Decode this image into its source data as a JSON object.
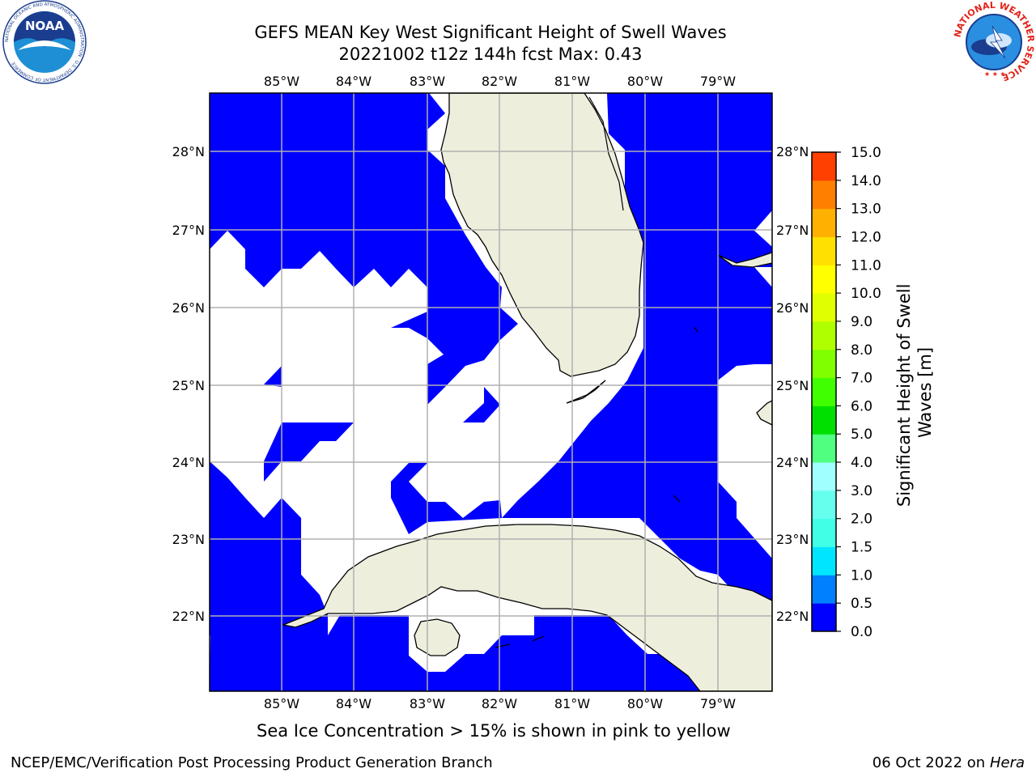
{
  "header": {
    "title_line1": "GEFS MEAN Key West Significant Height of Swell Waves",
    "title_line2": "20221002 t12z 144h fcst   Max: 0.43"
  },
  "map": {
    "lon_labels": [
      "85°W",
      "84°W",
      "83°W",
      "82°W",
      "81°W",
      "80°W",
      "79°W"
    ],
    "lat_labels": [
      "28°N",
      "27°N",
      "26°N",
      "25°N",
      "24°N",
      "23°N",
      "22°N"
    ],
    "colors": {
      "water": "#0000ff",
      "land": "#eeeedd",
      "no_data": "#ffffff",
      "grid": "#b0b0b0"
    }
  },
  "colorbar": {
    "label": "Significant Height of Swell Waves [m]",
    "ticks": [
      "0.0",
      "0.5",
      "1.0",
      "1.5",
      "2.0",
      "3.0",
      "4.0",
      "5.0",
      "6.0",
      "7.0",
      "8.0",
      "9.0",
      "10.0",
      "11.0",
      "12.0",
      "13.0",
      "14.0",
      "15.0"
    ],
    "colors": [
      "#0000ff",
      "#0080ff",
      "#00e5ff",
      "#40ffe6",
      "#66ffee",
      "#a0ffff",
      "#50ff80",
      "#00e000",
      "#40ff00",
      "#80ff00",
      "#b0ff00",
      "#e0ff00",
      "#ffff00",
      "#ffe000",
      "#ffb000",
      "#ff8000",
      "#ff4000",
      "#ff0000"
    ]
  },
  "caption": "Sea Ice Concentration > 15% is shown in pink to yellow",
  "footer": {
    "left": "NCEP/EMC/Verification Post Processing Product Generation Branch",
    "date": "06 Oct 2022 on ",
    "host": "Hera"
  },
  "logos": {
    "noaa_text": "NOAA",
    "noaa_ring": "NATIONAL OCEANIC AND ATMOSPHERIC ADMINISTRATION · U.S. DEPARTMENT OF COMMERCE",
    "nws_ring": "NATIONAL WEATHER SERVICE"
  }
}
